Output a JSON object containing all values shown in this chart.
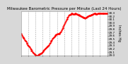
{
  "title": "Milwaukee Barometric Pressure per Minute (Last 24 Hours)",
  "ylabel": "Inches Hg",
  "background_color": "#d8d8d8",
  "plot_background": "#ffffff",
  "line_color": "#ff0000",
  "marker": ".",
  "markersize": 1.5,
  "grid_color": "#999999",
  "grid_style": "--",
  "ylim": [
    29.0,
    30.35
  ],
  "yticks": [
    29.0,
    29.1,
    29.2,
    29.3,
    29.4,
    29.5,
    29.6,
    29.7,
    29.8,
    29.9,
    30.0,
    30.1,
    30.2,
    30.3
  ],
  "pressure_values": [
    29.65,
    29.62,
    29.58,
    29.55,
    29.52,
    29.5,
    29.47,
    29.44,
    29.41,
    29.38,
    29.35,
    29.32,
    29.3,
    29.27,
    29.24,
    29.21,
    29.18,
    29.15,
    29.13,
    29.1,
    29.08,
    29.06,
    29.04,
    29.02,
    29.01,
    29.0,
    29.0,
    29.0,
    29.01,
    29.02,
    29.03,
    29.04,
    29.05,
    29.06,
    29.08,
    29.1,
    29.12,
    29.14,
    29.16,
    29.18,
    29.2,
    29.22,
    29.24,
    29.26,
    29.28,
    29.3,
    29.32,
    29.35,
    29.38,
    29.41,
    29.44,
    29.47,
    29.5,
    29.53,
    29.56,
    29.58,
    29.6,
    29.62,
    29.63,
    29.64,
    29.65,
    29.65,
    29.65,
    29.66,
    29.68,
    29.7,
    29.73,
    29.76,
    29.8,
    29.84,
    29.88,
    29.92,
    29.96,
    30.0,
    30.04,
    30.08,
    30.12,
    30.15,
    30.18,
    30.21,
    30.23,
    30.25,
    30.26,
    30.27,
    30.28,
    30.28,
    30.27,
    30.26,
    30.26,
    30.27,
    30.28,
    30.28,
    30.27,
    30.26,
    30.25,
    30.24,
    30.23,
    30.22,
    30.21,
    30.2,
    30.19,
    30.18,
    30.17,
    30.16,
    30.15,
    30.15,
    30.14,
    30.15,
    30.16,
    30.17,
    30.18,
    30.19,
    30.2,
    30.21,
    30.22,
    30.22,
    30.23,
    30.24,
    30.25,
    30.26,
    30.27,
    30.28,
    30.28,
    30.28,
    30.27,
    30.27,
    30.27,
    30.28,
    30.28,
    30.28,
    30.28,
    30.28,
    30.28,
    30.28,
    30.28,
    30.28,
    30.28,
    30.28,
    30.28,
    30.28,
    30.28,
    30.28,
    30.28,
    30.28
  ],
  "num_vgrid": 11,
  "title_fontsize": 4,
  "tick_fontsize": 3,
  "ylabel_fontsize": 3.5
}
